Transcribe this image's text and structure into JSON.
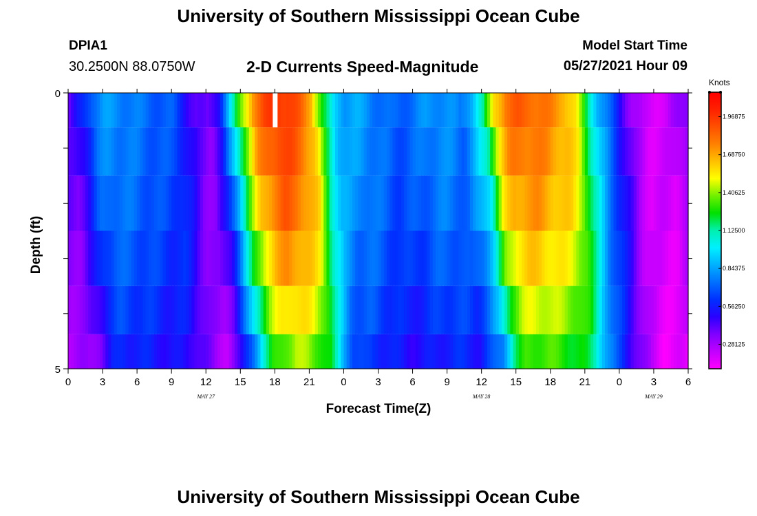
{
  "header": {
    "title": "University of Southern Mississippi Ocean Cube",
    "station": "DPIA1",
    "coords": "30.2500N  88.0750W",
    "plot_title": "2-D Currents Speed-Magnitude",
    "model_start_label": "Model Start Time",
    "model_start_value": "05/27/2021 Hour 09"
  },
  "footer": {
    "title": "University of Southern Mississippi Ocean Cube"
  },
  "colorbar": {
    "title": "Knots",
    "tick_labels": [
      "0.28125",
      "0.56250",
      "0.84375",
      "1.12500",
      "1.40625",
      "1.68750",
      "1.96875"
    ],
    "tick_values": [
      0.28125,
      0.5625,
      0.84375,
      1.125,
      1.40625,
      1.6875,
      1.96875
    ],
    "colors": [
      "#ff00ff",
      "#c000ff",
      "#8000ff",
      "#2a00ff",
      "#0030ff",
      "#0070ff",
      "#00b0ff",
      "#00f0ff",
      "#00f0b0",
      "#00e000",
      "#70f000",
      "#ffff00",
      "#ffc000",
      "#ff8000",
      "#ff5000",
      "#ff2000",
      "#ff0000"
    ]
  },
  "chart_data": {
    "type": "heatmap",
    "title": "2-D Currents Speed-Magnitude",
    "xlabel": "Forecast Time(Z)",
    "ylabel": "Depth (ft)",
    "units": "Knots",
    "ylim": [
      0,
      5
    ],
    "y_tick_labels": [
      "0",
      "5"
    ],
    "y_ticks": [
      0,
      1,
      2,
      3,
      4,
      5
    ],
    "depth_bins": [
      0.25,
      1.0,
      2.0,
      3.0,
      4.0,
      4.75
    ],
    "x_start_hour": 0,
    "x_end_hour": 54,
    "x_tick_labels": [
      "0",
      "3",
      "6",
      "9",
      "12",
      "15",
      "18",
      "21",
      "0",
      "3",
      "6",
      "9",
      "12",
      "15",
      "18",
      "21",
      "0",
      "3",
      "6"
    ],
    "date_labels": [
      {
        "label": "MAY 27",
        "hour": 12
      },
      {
        "label": "MAY 28",
        "hour": 36
      },
      {
        "label": "MAY 29",
        "hour": 51
      }
    ],
    "zlim": [
      0.1,
      2.15
    ],
    "time_hours": [
      0,
      1,
      2,
      3,
      4,
      5,
      6,
      7,
      8,
      9,
      10,
      11,
      12,
      13,
      14,
      15,
      16,
      17,
      18,
      19,
      20,
      21,
      22,
      23,
      24,
      25,
      26,
      27,
      28,
      29,
      30,
      31,
      32,
      33,
      34,
      35,
      36,
      37,
      38,
      39,
      40,
      41,
      42,
      43,
      44,
      45,
      46,
      47,
      48,
      49,
      50,
      51,
      52,
      53,
      54
    ],
    "surface_speed_profile": [
      0.4,
      0.55,
      0.75,
      0.82,
      0.8,
      0.78,
      0.75,
      0.72,
      0.7,
      0.68,
      0.55,
      0.4,
      0.36,
      0.55,
      0.95,
      1.4,
      1.75,
      1.9,
      2.0,
      1.95,
      1.85,
      1.7,
      1.25,
      0.95,
      0.85,
      0.85,
      0.8,
      0.75,
      0.7,
      0.72,
      0.75,
      0.8,
      0.82,
      0.8,
      0.75,
      0.9,
      1.1,
      1.6,
      1.8,
      1.85,
      1.85,
      1.8,
      1.75,
      1.7,
      1.55,
      1.2,
      0.9,
      0.7,
      0.5,
      0.3,
      0.2,
      0.2,
      0.2,
      0.3,
      0.4
    ],
    "depth_factors": [
      1.0,
      0.97,
      0.93,
      0.87,
      0.8,
      0.72
    ],
    "missing_cells": [
      {
        "hour": 18,
        "depth_bin": 0.25
      }
    ]
  }
}
